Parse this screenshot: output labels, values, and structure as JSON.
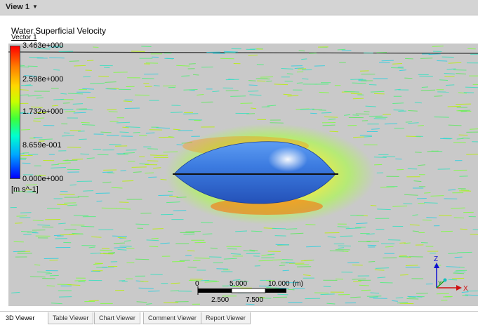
{
  "view": {
    "title": "View 1"
  },
  "plot": {
    "title": "Water.Superficial Velocity",
    "subtitle": "Vector 1",
    "legend": {
      "labels": [
        "3.463e+000",
        "2.598e+000",
        "1.732e+000",
        "8.659e-001",
        "0.000e+000"
      ],
      "unit": "[m s^-1]"
    },
    "scale": {
      "top_labels": [
        "0",
        "5.000",
        "10.000",
        "(m)"
      ],
      "bottom_labels": [
        "2.500",
        "7.500"
      ]
    },
    "axis": {
      "z": "Z",
      "y": "Y",
      "x": "X"
    }
  },
  "tabs": [
    {
      "label": "3D Viewer",
      "active": true
    },
    {
      "label": "Table Viewer",
      "active": false
    },
    {
      "label": "Chart Viewer",
      "active": false
    },
    {
      "label": "Comment Viewer",
      "active": false
    },
    {
      "label": "Report Viewer",
      "active": false
    }
  ],
  "colors": {
    "body": "#3e7ee6",
    "background_field": "#c9c9c9"
  }
}
